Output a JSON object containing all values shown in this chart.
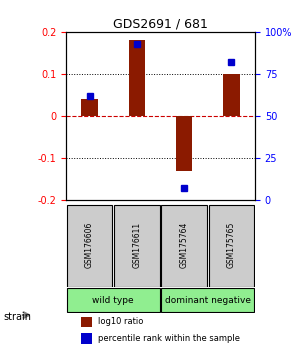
{
  "title": "GDS2691 / 681",
  "samples": [
    "GSM176606",
    "GSM176611",
    "GSM175764",
    "GSM175765"
  ],
  "log10_ratio": [
    0.04,
    0.18,
    -0.13,
    0.1
  ],
  "percentile_rank": [
    62,
    93,
    7,
    82
  ],
  "ylim_left": [
    -0.2,
    0.2
  ],
  "ylim_right": [
    0,
    100
  ],
  "yticks_left": [
    -0.2,
    -0.1,
    0,
    0.1,
    0.2
  ],
  "yticks_right": [
    0,
    25,
    50,
    75,
    100
  ],
  "bar_color": "#8B1A00",
  "dot_color": "#0000CC",
  "zero_line_color": "#CC0000",
  "grid_color": "#000000",
  "groups": [
    {
      "label": "wild type",
      "samples": [
        0,
        1
      ],
      "color": "#90EE90"
    },
    {
      "label": "dominant negative",
      "samples": [
        2,
        3
      ],
      "color": "#90EE90"
    }
  ],
  "strain_label": "strain",
  "legend_items": [
    {
      "color": "#8B1A00",
      "label": "log10 ratio"
    },
    {
      "color": "#0000CC",
      "label": "percentile rank within the sample"
    }
  ]
}
